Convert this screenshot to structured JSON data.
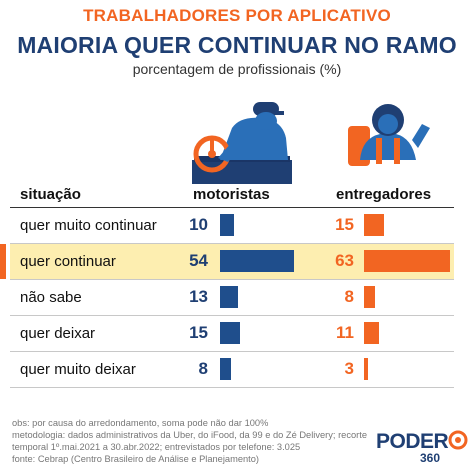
{
  "header": {
    "kicker": "TRABALHADORES POR APLICATIVO",
    "title": "MAIORIA QUER CONTINUAR NO RAMO",
    "subtitle": "porcentagem de profissionais (%)"
  },
  "table_headers": {
    "situacao": "situação",
    "motoristas": "motoristas",
    "entregadores": "entregadores"
  },
  "chart_data": {
    "type": "bar",
    "title": "MAIORIA QUER CONTINUAR NO RAMO",
    "subtitle": "porcentagem de profissionais (%)",
    "categories": [
      "quer muito continuar",
      "quer continuar",
      "não sabe",
      "quer deixar",
      "quer muito deixar"
    ],
    "highlighted_category": "quer continuar",
    "series": [
      {
        "name": "motoristas",
        "values": [
          10,
          54,
          13,
          15,
          8
        ],
        "color": "#1f4e8c"
      },
      {
        "name": "entregadores",
        "values": [
          15,
          63,
          8,
          11,
          3
        ],
        "color": "#f26522"
      }
    ],
    "xlim": [
      0,
      63
    ],
    "grid": false,
    "legend": "column headers"
  },
  "notes": [
    "obs: por causa do arredondamento, soma pode não dar 100%",
    "metodologia: dados administrativos da Uber, do iFood, da 99 e do Zé Delivery; recorte",
    "temporal 1º.mai.2021 a 30.abr.2022; entrevistados por telefone: 3.025",
    "fonte: Cebrap (Centro Brasileiro de Análise e Planejamento)"
  ],
  "logo": {
    "word": "PODER",
    "number": "360"
  },
  "colors": {
    "navy": "#1f3f73",
    "bar_blue": "#1f4e8c",
    "orange": "#f26522",
    "highlight": "#fdeeb0"
  },
  "icons": [
    "driver-illustration",
    "delivery-person-illustration"
  ]
}
